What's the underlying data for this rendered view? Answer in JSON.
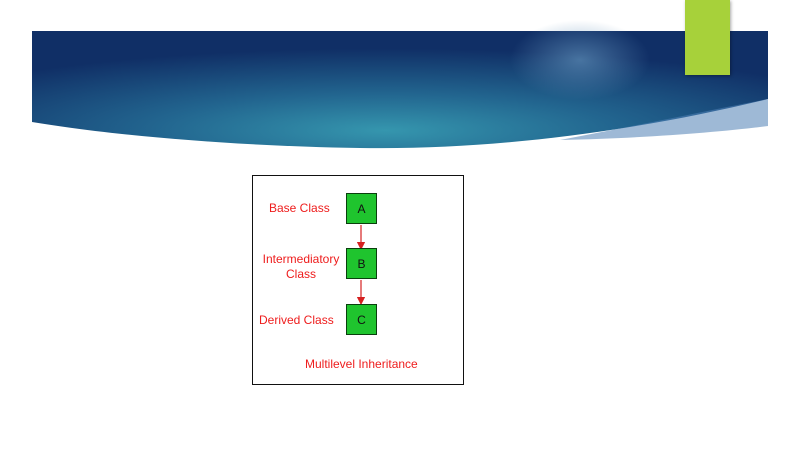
{
  "diagram": {
    "classes": [
      {
        "letter": "A",
        "label": "Base Class"
      },
      {
        "letter": "B",
        "label_line1": "Intermediatory",
        "label_line2": "Class"
      },
      {
        "letter": "C",
        "label": "Derived Class"
      }
    ],
    "caption": "Multilevel Inheritance"
  },
  "colors": {
    "banner_dark": "#0f2f63",
    "banner_mid": "#2e8aa4",
    "accent": "#a7d13a",
    "box_fill": "#1fc42e",
    "label_text": "#ee1c1c",
    "arrow": "#d62020"
  }
}
